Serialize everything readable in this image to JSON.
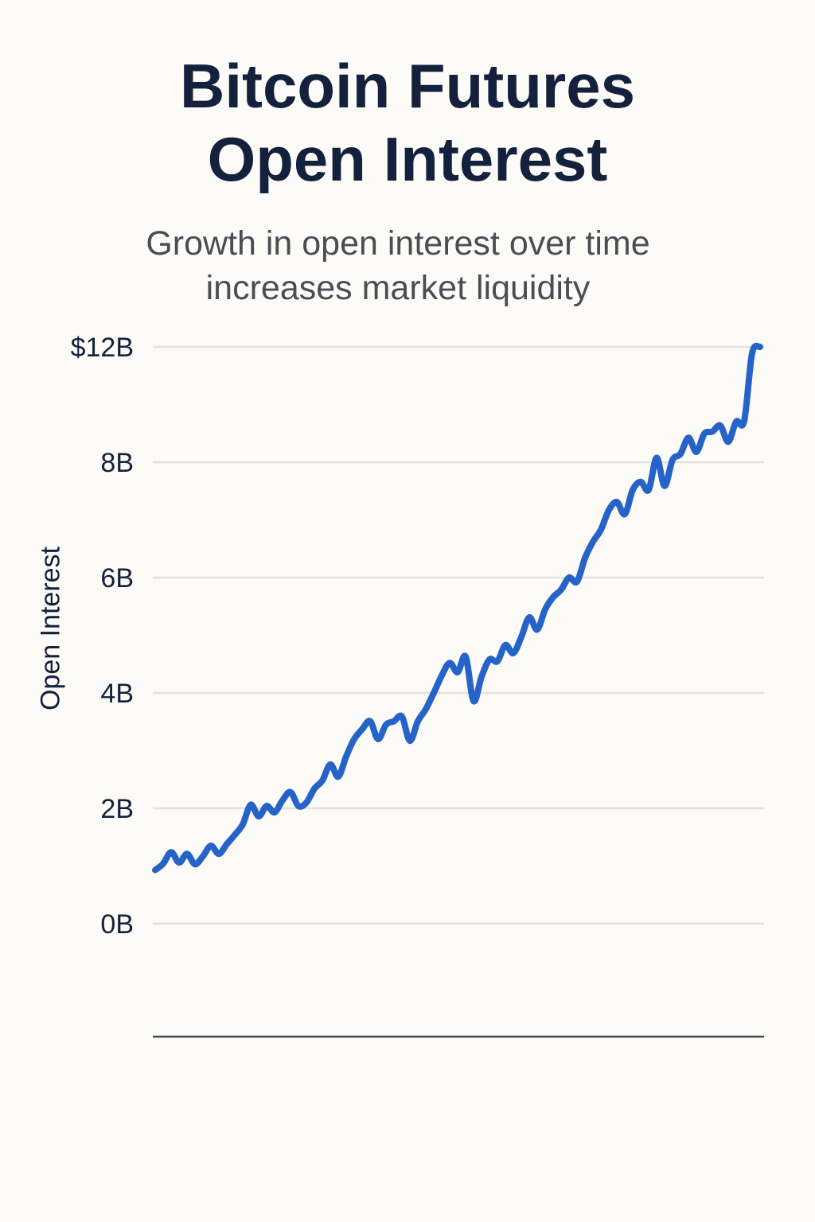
{
  "chart_data": {
    "type": "line",
    "title": "Bitcoin Futures Open Interest",
    "title_lines": [
      "Bitcoin Futures",
      "Open Interest"
    ],
    "subtitle": "Growth in open interest over time increases market liquidity",
    "subtitle_lines": [
      "Growth in open interest over time",
      "increases market liquidity"
    ],
    "xlabel": "",
    "ylabel": "Open Interest",
    "y_ticks": [
      {
        "label": "0B",
        "value": 0
      },
      {
        "label": "2B",
        "value": 2
      },
      {
        "label": "4B",
        "value": 4
      },
      {
        "label": "6B",
        "value": 6
      },
      {
        "label": "8B",
        "value": 8
      },
      {
        "label": "$12B",
        "value": 12
      }
    ],
    "y_unit": "billion USD",
    "ylim": [
      0,
      12
    ],
    "grid": true,
    "legend": "none",
    "line_color": "#2563c9",
    "series": [
      {
        "name": "Open Interest",
        "values": [
          0.93,
          1.04,
          1.24,
          1.06,
          1.21,
          1.03,
          1.17,
          1.35,
          1.21,
          1.38,
          1.54,
          1.72,
          2.06,
          1.86,
          2.04,
          1.93,
          2.14,
          2.28,
          2.04,
          2.1,
          2.34,
          2.48,
          2.76,
          2.55,
          2.9,
          3.2,
          3.37,
          3.51,
          3.2,
          3.45,
          3.51,
          3.59,
          3.17,
          3.51,
          3.72,
          4.0,
          4.3,
          4.52,
          4.36,
          4.63,
          3.86,
          4.28,
          4.58,
          4.55,
          4.83,
          4.69,
          4.97,
          5.31,
          5.1,
          5.45,
          5.66,
          5.79,
          6.0,
          5.93,
          6.34,
          6.62,
          6.83,
          7.17,
          7.31,
          7.1,
          7.52,
          7.66,
          7.52,
          8.15,
          7.59,
          8.08,
          8.29,
          8.85,
          8.36,
          8.99,
          9.06,
          9.27,
          8.71,
          9.41,
          9.43,
          11.78,
          12.0
        ]
      }
    ]
  }
}
